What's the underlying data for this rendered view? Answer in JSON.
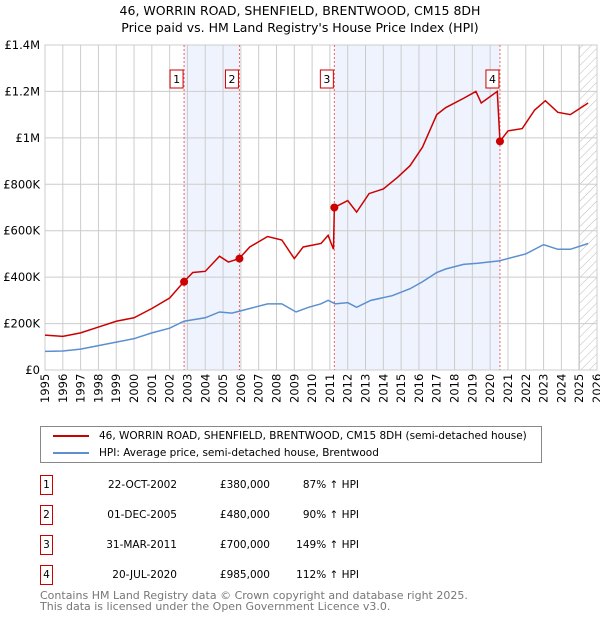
{
  "title": "46, WORRIN ROAD, SHENFIELD, BRENTWOOD, CM15 8DH",
  "subtitle": "Price paid vs. HM Land Registry's House Price Index (HPI)",
  "chart_data": {
    "type": "line",
    "xlim": [
      1995,
      2026
    ],
    "ylim": [
      0,
      1400000
    ],
    "yticks": [
      {
        "v": 0,
        "l": "£0"
      },
      {
        "v": 200000,
        "l": "£200K"
      },
      {
        "v": 400000,
        "l": "£400K"
      },
      {
        "v": 600000,
        "l": "£600K"
      },
      {
        "v": 800000,
        "l": "£800K"
      },
      {
        "v": 1000000,
        "l": "£1M"
      },
      {
        "v": 1200000,
        "l": "£1.2M"
      },
      {
        "v": 1400000,
        "l": "£1.4M"
      }
    ],
    "xticks": [
      "1995",
      "1996",
      "1997",
      "1998",
      "1999",
      "2000",
      "2001",
      "2002",
      "2003",
      "2004",
      "2005",
      "2006",
      "2007",
      "2008",
      "2009",
      "2010",
      "2011",
      "2012",
      "2013",
      "2014",
      "2015",
      "2016",
      "2017",
      "2018",
      "2019",
      "2020",
      "2021",
      "2022",
      "2023",
      "2024",
      "2025",
      "2026"
    ],
    "series": [
      {
        "name": "46, WORRIN ROAD, SHENFIELD, BRENTWOOD, CM15 8DH (semi-detached house)",
        "color": "#cc0000",
        "x": [
          1995,
          1996,
          1997,
          1998,
          1999,
          2000,
          2001,
          2002,
          2002.8,
          2003.3,
          2004,
          2004.8,
          2005.3,
          2005.9,
          2006.5,
          2007.5,
          2008.3,
          2009,
          2009.5,
          2010.5,
          2010.9,
          2011.2,
          2011.25,
          2012,
          2012.5,
          2013.2,
          2014,
          2014.8,
          2015.5,
          2016.2,
          2017,
          2017.5,
          2018.5,
          2019.2,
          2019.5,
          2020.4,
          2020.55,
          2021,
          2021.8,
          2022.5,
          2023.1,
          2023.8,
          2024.5,
          2025.3,
          2025.5
        ],
        "y": [
          150000,
          145000,
          160000,
          185000,
          210000,
          225000,
          265000,
          310000,
          380000,
          420000,
          425000,
          490000,
          465000,
          480000,
          530000,
          575000,
          560000,
          480000,
          530000,
          545000,
          580000,
          520000,
          700000,
          730000,
          680000,
          760000,
          780000,
          830000,
          880000,
          960000,
          1100000,
          1130000,
          1170000,
          1200000,
          1150000,
          1200000,
          985000,
          1030000,
          1040000,
          1120000,
          1160000,
          1110000,
          1100000,
          1140000,
          1150000
        ]
      },
      {
        "name": "HPI: Average price, semi-detached house, Brentwood",
        "color": "#5b8fd0",
        "x": [
          1995,
          1996,
          1997,
          1998,
          1999,
          2000,
          2001,
          2002,
          2002.8,
          2004,
          2004.8,
          2005.5,
          2006.5,
          2007.5,
          2008.3,
          2009.1,
          2009.8,
          2010.5,
          2010.9,
          2011.3,
          2012,
          2012.5,
          2013.3,
          2014.5,
          2015.5,
          2016.2,
          2017,
          2017.5,
          2018.5,
          2019.3,
          2020.5,
          2021,
          2022,
          2023,
          2023.8,
          2024.5,
          2025.5
        ],
        "y": [
          80000,
          82000,
          90000,
          105000,
          120000,
          135000,
          160000,
          180000,
          210000,
          225000,
          250000,
          245000,
          265000,
          285000,
          285000,
          250000,
          270000,
          285000,
          300000,
          285000,
          290000,
          270000,
          300000,
          320000,
          350000,
          380000,
          420000,
          435000,
          455000,
          460000,
          470000,
          480000,
          500000,
          540000,
          520000,
          520000,
          545000
        ]
      }
    ],
    "sales": [
      {
        "n": "1",
        "x": 2002.81,
        "date": "22-OCT-2002",
        "price": 380000,
        "price_label": "£380,000",
        "hpi": "87% ↑ HPI"
      },
      {
        "n": "2",
        "x": 2005.92,
        "date": "01-DEC-2005",
        "price": 480000,
        "price_label": "£480,000",
        "hpi": "90% ↑ HPI"
      },
      {
        "n": "3",
        "x": 2011.25,
        "date": "31-MAR-2011",
        "price": 700000,
        "price_label": "£700,000",
        "hpi": "149% ↑ HPI"
      },
      {
        "n": "4",
        "x": 2020.55,
        "date": "20-JUL-2020",
        "price": 985000,
        "price_label": "£985,000",
        "hpi": "112% ↑ HPI"
      }
    ],
    "forecast_from": 2025.0
  },
  "footer": [
    "Contains HM Land Registry data © Crown copyright and database right 2025.",
    "This data is licensed under the Open Government Licence v3.0."
  ]
}
